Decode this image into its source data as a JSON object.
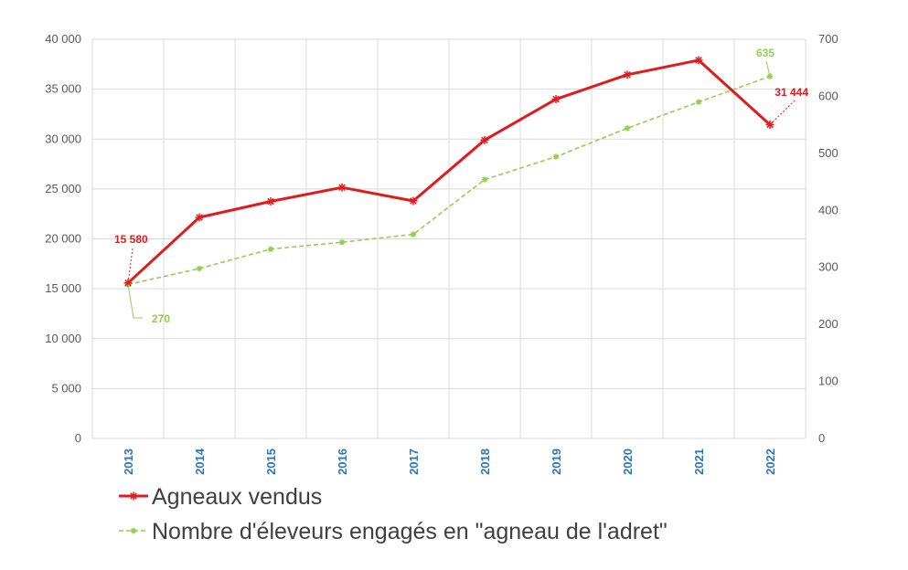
{
  "chart_data": {
    "type": "line",
    "categories": [
      "2013",
      "2014",
      "2015",
      "2016",
      "2017",
      "2018",
      "2019",
      "2020",
      "2021",
      "2022"
    ],
    "y_left": {
      "ylim": [
        0,
        40000
      ],
      "ticks": [
        "0",
        "5 000",
        "10 000",
        "15 000",
        "20 000",
        "25 000",
        "30 000",
        "35 000",
        "40 000"
      ]
    },
    "y_right": {
      "ylim": [
        0,
        700
      ],
      "ticks": [
        "0",
        "100",
        "200",
        "300",
        "400",
        "500",
        "600",
        "700"
      ]
    },
    "grid": true,
    "legend_position": "bottom-left",
    "series": [
      {
        "name": "Agneaux vendus",
        "axis": "left",
        "color": "#e31a1c",
        "line_style": "solid",
        "marker": "asterisk",
        "values": [
          15580,
          22150,
          23750,
          25150,
          23800,
          29900,
          34000,
          36450,
          37900,
          31444
        ]
      },
      {
        "name": "Nombre d'éleveurs engagés en \"agneau de l'adret\"",
        "axis": "right",
        "color": "#92d050",
        "line_style": "dashed",
        "marker": "asterisk",
        "values": [
          270,
          298,
          332,
          344,
          358,
          454,
          494,
          544,
          590,
          635
        ]
      }
    ],
    "annotations": [
      {
        "series": 0,
        "index": 0,
        "text": "15 580",
        "color": "#e31a1c"
      },
      {
        "series": 0,
        "index": 9,
        "text": "31 444",
        "color": "#e31a1c"
      },
      {
        "series": 1,
        "index": 0,
        "text": "270",
        "color": "#92d050"
      },
      {
        "series": 1,
        "index": 9,
        "text": "635",
        "color": "#92d050"
      }
    ]
  }
}
